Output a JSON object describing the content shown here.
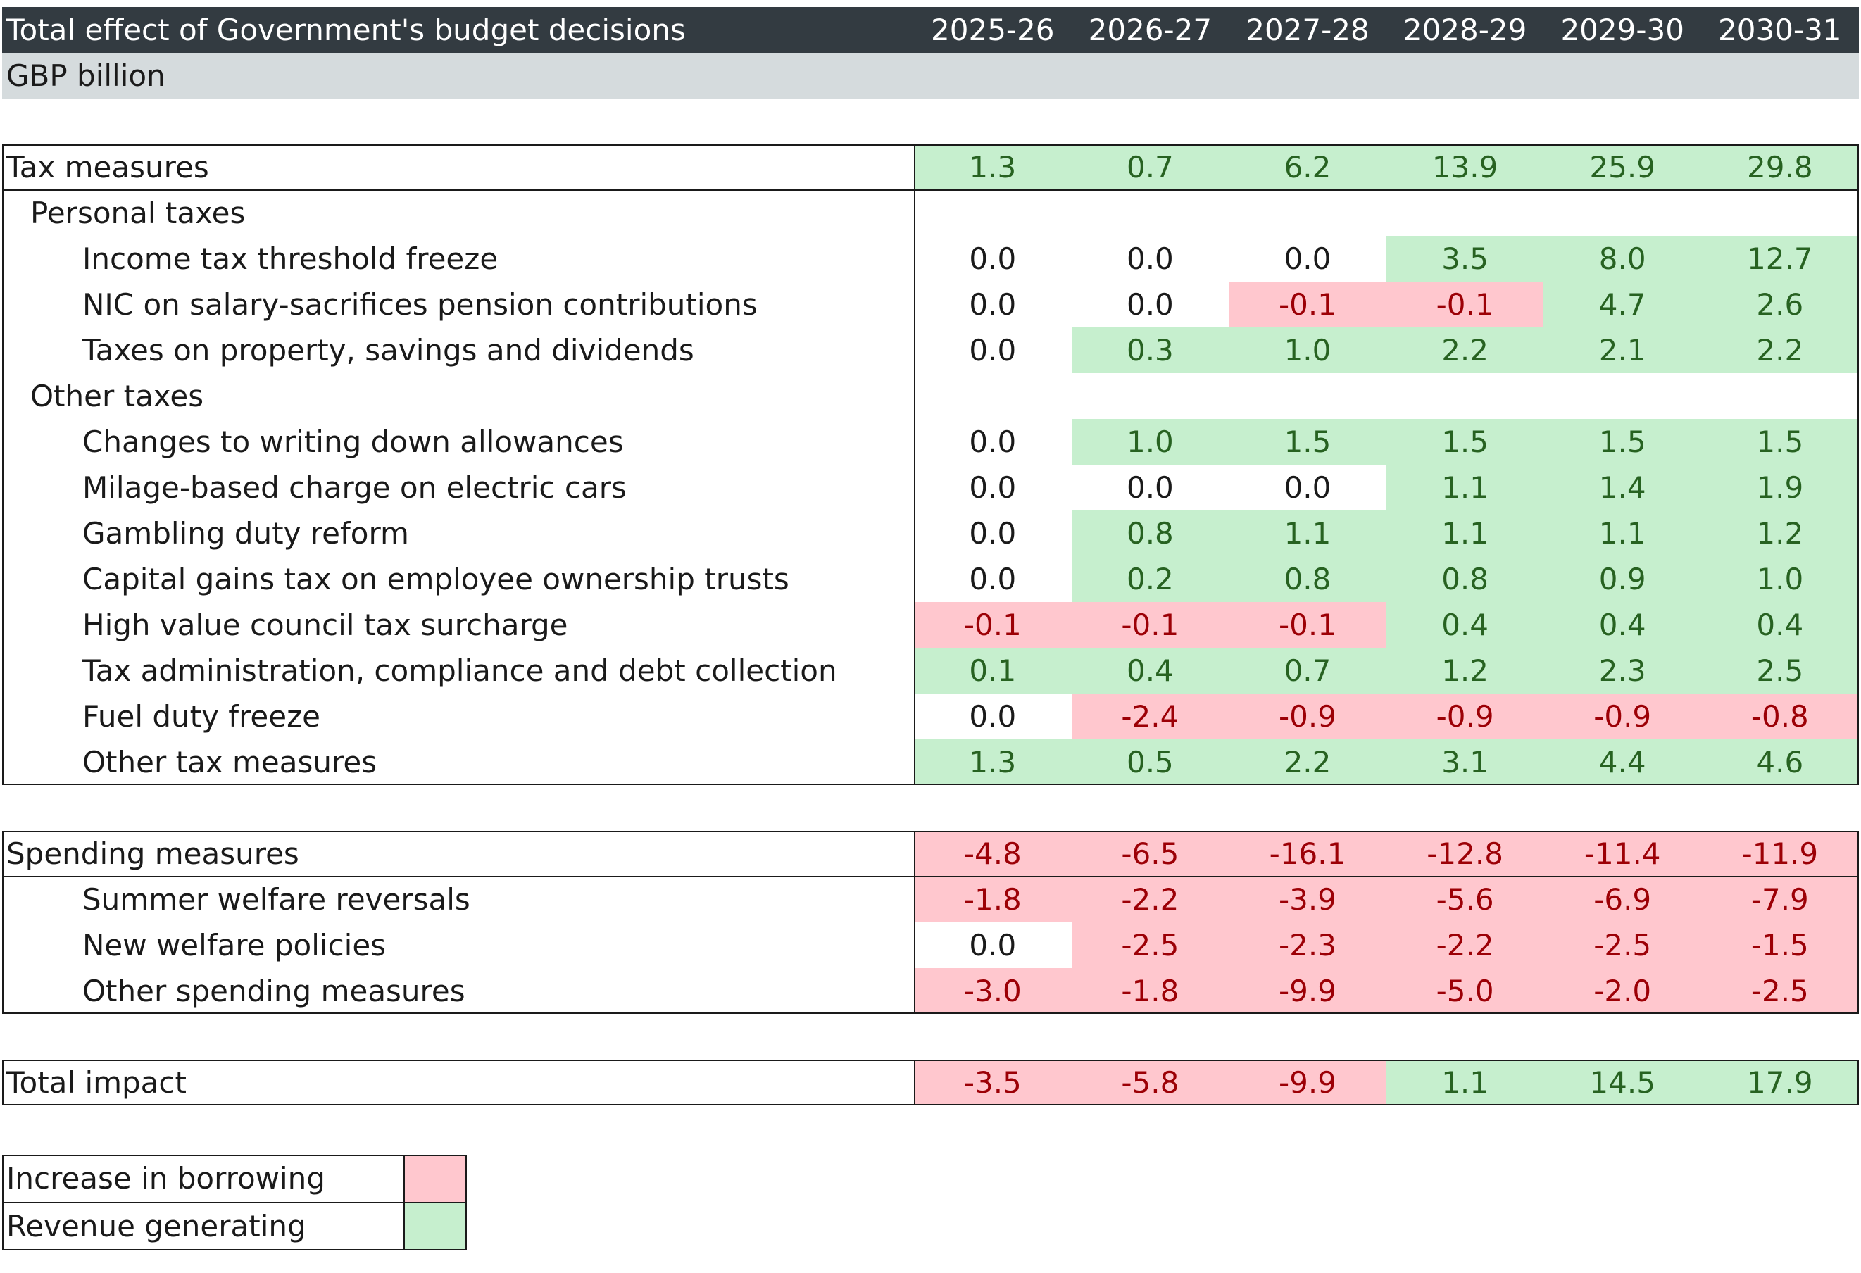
{
  "chart_data": {
    "type": "table",
    "title": "Total effect of Government's budget decisions",
    "subtitle": "GBP billion",
    "columns": [
      "2025-26",
      "2026-27",
      "2027-28",
      "2028-29",
      "2029-30",
      "2030-31"
    ],
    "sections": [
      {
        "rows": [
          {
            "label": "Tax measures",
            "indent": 0,
            "values": [
              1.3,
              0.7,
              6.2,
              13.9,
              25.9,
              29.8
            ],
            "total": true
          },
          {
            "label": "Personal taxes",
            "indent": 1,
            "values": null
          },
          {
            "label": "Income tax threshold freeze",
            "indent": 2,
            "values": [
              0.0,
              0.0,
              0.0,
              3.5,
              8.0,
              12.7
            ]
          },
          {
            "label": "NIC on salary-sacrifices pension contributions",
            "indent": 2,
            "values": [
              0.0,
              0.0,
              -0.1,
              -0.1,
              4.7,
              2.6
            ]
          },
          {
            "label": "Taxes on property, savings and dividends",
            "indent": 2,
            "values": [
              0.0,
              0.3,
              1.0,
              2.2,
              2.1,
              2.2
            ]
          },
          {
            "label": "Other taxes",
            "indent": 1,
            "values": null
          },
          {
            "label": "Changes to writing down allowances",
            "indent": 2,
            "values": [
              0.0,
              1.0,
              1.5,
              1.5,
              1.5,
              1.5
            ]
          },
          {
            "label": "Milage-based charge on electric cars",
            "indent": 2,
            "values": [
              0.0,
              0.0,
              0.0,
              1.1,
              1.4,
              1.9
            ]
          },
          {
            "label": "Gambling duty reform",
            "indent": 2,
            "values": [
              0.0,
              0.8,
              1.1,
              1.1,
              1.1,
              1.2
            ]
          },
          {
            "label": "Capital gains tax on employee ownership trusts",
            "indent": 2,
            "values": [
              0.0,
              0.2,
              0.8,
              0.8,
              0.9,
              1.0
            ]
          },
          {
            "label": "High value council tax surcharge",
            "indent": 2,
            "values": [
              -0.1,
              -0.1,
              -0.1,
              0.4,
              0.4,
              0.4
            ]
          },
          {
            "label": "Tax administration, compliance and debt collection",
            "indent": 2,
            "values": [
              0.1,
              0.4,
              0.7,
              1.2,
              2.3,
              2.5
            ]
          },
          {
            "label": "Fuel duty freeze",
            "indent": 2,
            "values": [
              0.0,
              -2.4,
              -0.9,
              -0.9,
              -0.9,
              -0.8
            ]
          },
          {
            "label": "Other tax measures",
            "indent": 2,
            "values": [
              1.3,
              0.5,
              2.2,
              3.1,
              4.4,
              4.6
            ]
          }
        ]
      },
      {
        "rows": [
          {
            "label": "Spending measures",
            "indent": 0,
            "values": [
              -4.8,
              -6.5,
              -16.1,
              -12.8,
              -11.4,
              -11.9
            ],
            "total": true
          },
          {
            "label": "Summer welfare reversals",
            "indent": 2,
            "values": [
              -1.8,
              -2.2,
              -3.9,
              -5.6,
              -6.9,
              -7.9
            ]
          },
          {
            "label": "New welfare policies",
            "indent": 2,
            "values": [
              0.0,
              -2.5,
              -2.3,
              -2.2,
              -2.5,
              -1.5
            ]
          },
          {
            "label": "Other spending measures",
            "indent": 2,
            "values": [
              -3.0,
              -1.8,
              -9.9,
              -5.0,
              -2.0,
              -2.5
            ]
          }
        ]
      },
      {
        "rows": [
          {
            "label": "Total impact",
            "indent": 0,
            "values": [
              -3.5,
              -5.8,
              -9.9,
              1.1,
              14.5,
              17.9
            ],
            "total": true
          }
        ]
      }
    ],
    "legend": [
      {
        "label": "Increase in borrowing",
        "color": "#ffc7ce"
      },
      {
        "label": "Revenue generating",
        "color": "#c6efce"
      }
    ]
  },
  "colors": {
    "header_bg": "#333b41",
    "subheader_bg": "#d5dbdd",
    "positive_fill": "#c6efce",
    "positive_text": "#276221",
    "negative_fill": "#ffc7ce",
    "negative_text": "#9c0006"
  }
}
